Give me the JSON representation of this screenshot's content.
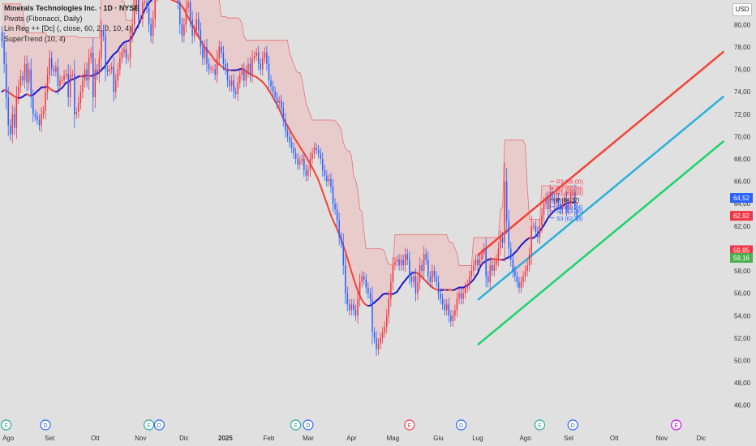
{
  "legend": {
    "title": "Minerals Technologies Inc. · 1D · NYSE",
    "line1": "Pivots (Fibonacci, Daily)",
    "line2": "Lin Reg ++ [Dc] (, close, 60, 2, 0, 10, 4)",
    "line3": "SuperTrend (10, 4)"
  },
  "currency_button": "USD",
  "colors": {
    "up": "#f23645",
    "down": "#2962ff",
    "reg_upper": "#f44336",
    "reg_mid": "#2ab0d8",
    "reg_lower": "#19d46a",
    "linreg_curve_red": "#f44336",
    "linreg_curve_blue": "#1c1ccc",
    "st_red": "#f5a3a3",
    "st_green": "#8fd08f"
  },
  "chart_data": {
    "type": "candlestick",
    "y_axis": {
      "range": [
        45.4,
        82.2
      ],
      "ticks": [
        "46,00",
        "48,00",
        "50,00",
        "52,00",
        "54,00",
        "56,00",
        "58,00",
        "60,00",
        "62,00",
        "64,00",
        "66,00",
        "68,00",
        "70,00",
        "72,00",
        "74,00",
        "76,00",
        "78,00",
        "80,00"
      ]
    },
    "x_axis": {
      "ticks": [
        {
          "label": "Ago",
          "t": 3
        },
        {
          "label": "Set",
          "t": 23
        },
        {
          "label": "Ott",
          "t": 45
        },
        {
          "label": "Nov",
          "t": 67
        },
        {
          "label": "Dic",
          "t": 88
        },
        {
          "label": "2025",
          "t": 108
        },
        {
          "label": "Feb",
          "t": 129
        },
        {
          "label": "Mar",
          "t": 148
        },
        {
          "label": "Apr",
          "t": 169
        },
        {
          "label": "Mag",
          "t": 189
        },
        {
          "label": "Giu",
          "t": 211
        },
        {
          "label": "Lug",
          "t": 230
        },
        {
          "label": "Ago",
          "t": 253
        },
        {
          "label": "Set",
          "t": 274
        },
        {
          "label": "Ott",
          "t": 296
        },
        {
          "label": "Nov",
          "t": 319
        },
        {
          "label": "Dic",
          "t": 338
        }
      ]
    },
    "closes": [
      78.5,
      76.5,
      73.5,
      71.0,
      70.2,
      72.0,
      70.8,
      73.5,
      74.5,
      75.4,
      75.0,
      76.5,
      74.8,
      76.0,
      73.5,
      72.0,
      71.8,
      71.5,
      71.0,
      72.0,
      72.3,
      74.0,
      75.5,
      77.0,
      76.0,
      75.8,
      76.2,
      74.5,
      75.0,
      75.0,
      75.5,
      75.6,
      73.5,
      75.5,
      75.6,
      72.0,
      72.2,
      73.0,
      74.0,
      75.0,
      76.0,
      75.0,
      77.0,
      77.5,
      73.5,
      76.0,
      75.5,
      77.0,
      79.5,
      79.0,
      76.0,
      75.8,
      76.0,
      76.2,
      74.0,
      75.0,
      76.0,
      77.0,
      77.5,
      77.8,
      77.0,
      77.0,
      79.0,
      80.0,
      81.5,
      82.5,
      80.5,
      80.5,
      82.0,
      82.0,
      81.5,
      80.0,
      79.0,
      80.5,
      82.5,
      83.0,
      84.5,
      85.0,
      84.5,
      86.0,
      85.5,
      87.0,
      85.0,
      84.5,
      83.0,
      82.0,
      80.0,
      79.0,
      80.0,
      81.5,
      82.0,
      80.5,
      79.0,
      79.5,
      80.5,
      79.5,
      78.0,
      77.0,
      78.0,
      76.5,
      76.0,
      76.0,
      76.0,
      75.5,
      77.0,
      78.0,
      77.5,
      76.5,
      76.0,
      75.0,
      74.5,
      75.0,
      74.0,
      73.8,
      74.8,
      75.5,
      76.0,
      75.0,
      75.8,
      76.5,
      75.5,
      77.0,
      77.2,
      77.5,
      76.5,
      76.0,
      77.0,
      77.5,
      76.5,
      75.0,
      74.5,
      74.0,
      73.5,
      73.0,
      73.2,
      72.5,
      71.5,
      70.5,
      70.0,
      69.5,
      69.0,
      68.5,
      68.0,
      67.5,
      67.8,
      68.0,
      67.0,
      66.5,
      67.0,
      68.0,
      68.5,
      69.0,
      68.8,
      68.5,
      68.0,
      67.0,
      66.5,
      66.0,
      66.2,
      65.5,
      64.0,
      63.5,
      62.5,
      61.0,
      60.5,
      58.5,
      56.0,
      55.0,
      54.5,
      55.0,
      54.5,
      54.0,
      55.5,
      57.0,
      57.5,
      57.2,
      56.5,
      56.0,
      55.5,
      52.5,
      52.0,
      51.0,
      51.5,
      52.0,
      52.5,
      53.0,
      54.0,
      55.5,
      57.0,
      58.5,
      58.8,
      59.0,
      58.5,
      59.0,
      58.5,
      59.5,
      59.0,
      57.5,
      57.0,
      57.5,
      56.0,
      57.0,
      58.5,
      58.0,
      59.5,
      59.0,
      57.5,
      57.0,
      58.0,
      57.5,
      57.0,
      56.0,
      55.5,
      55.0,
      54.5,
      55.0,
      54.0,
      53.5,
      54.0,
      54.5,
      55.5,
      56.0,
      55.5,
      56.0,
      56.5,
      56.8,
      57.5,
      58.0,
      58.5,
      59.0,
      58.5,
      59.0,
      59.5,
      60.0,
      57.5,
      57.0,
      58.5,
      58.0,
      58.5,
      59.0,
      60.0,
      61.0,
      60.5,
      66.0,
      62.5,
      60.0,
      59.0,
      58.0,
      57.5,
      57.0,
      56.5,
      57.0,
      57.5,
      58.0,
      58.5,
      59.5,
      62.0,
      62.0,
      61.5,
      61.0,
      62.0,
      63.0,
      64.0,
      64.5,
      63.5,
      65.0,
      64.5,
      64.0,
      64.5,
      64.0,
      63.5,
      64.0,
      64.5,
      63.5,
      64.0,
      64.8,
      65.0,
      63.5,
      62.9
    ],
    "linreg_channel": {
      "start": {
        "t": 230,
        "mid": 55.4
      },
      "end": {
        "t": 349,
        "mid": 73.6
      },
      "band": 4.0
    },
    "pivots": [
      {
        "label": "R3",
        "value": 66.0
      },
      {
        "label": "R2",
        "value": 65.38
      },
      {
        "label": "R1",
        "value": 64.99
      },
      {
        "label": "P",
        "value": 64.37
      },
      {
        "label": "S1",
        "value": 63.74
      },
      {
        "label": "S2",
        "value": 63.36
      },
      {
        "label": "S3",
        "value": 62.73
      }
    ],
    "price_labels": [
      {
        "value": 64.52,
        "text": "64,52",
        "color": "#2962ff"
      },
      {
        "value": 62.92,
        "text": "62,92",
        "color": "#f23645"
      },
      {
        "value": 59.85,
        "text": "59,85",
        "color": "#f23645"
      },
      {
        "value": 59.16,
        "text": "59,16",
        "color": "#4caf50"
      }
    ],
    "events": [
      {
        "t": 2,
        "letter": "E",
        "color": "#26a69a"
      },
      {
        "t": 21,
        "letter": "D",
        "color": "#2962ff"
      },
      {
        "t": 71,
        "letter": "E",
        "color": "#26a69a"
      },
      {
        "t": 76,
        "letter": "D",
        "color": "#2962ff"
      },
      {
        "t": 142,
        "letter": "E",
        "color": "#26a69a"
      },
      {
        "t": 148,
        "letter": "D",
        "color": "#2962ff"
      },
      {
        "t": 197,
        "letter": "E",
        "color": "#f23645"
      },
      {
        "t": 222,
        "letter": "D",
        "color": "#2962ff"
      },
      {
        "t": 260,
        "letter": "E",
        "color": "#26a69a"
      },
      {
        "t": 276,
        "letter": "D",
        "color": "#2962ff"
      },
      {
        "t": 326,
        "letter": "E",
        "color": "#d500f9"
      }
    ]
  }
}
